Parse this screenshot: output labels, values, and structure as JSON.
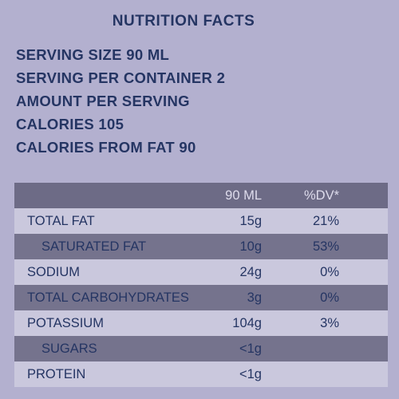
{
  "header": {
    "title": "NUTRITION FACTS",
    "lines": [
      "SERVING SIZE 90 ML",
      "SERVING PER CONTAINER 2",
      "AMOUNT PER SERVING",
      "CALORIES 105",
      "CALORIES FROM FAT 90"
    ]
  },
  "table": {
    "columns": [
      "90 ML",
      "%DV*"
    ],
    "rows": [
      [
        "TOTAL FAT",
        "15g",
        "21%"
      ],
      [
        "SATURATED FAT",
        "10g",
        "53%"
      ],
      [
        "SODIUM",
        "24g",
        "0%"
      ],
      [
        "TOTAL CARBOHYDRATES",
        "3g",
        "0%"
      ],
      [
        "POTASSIUM",
        "104g",
        "3%"
      ],
      [
        "SUGARS",
        "<1g",
        ""
      ],
      [
        "PROTEIN",
        "<1g",
        ""
      ]
    ]
  }
}
